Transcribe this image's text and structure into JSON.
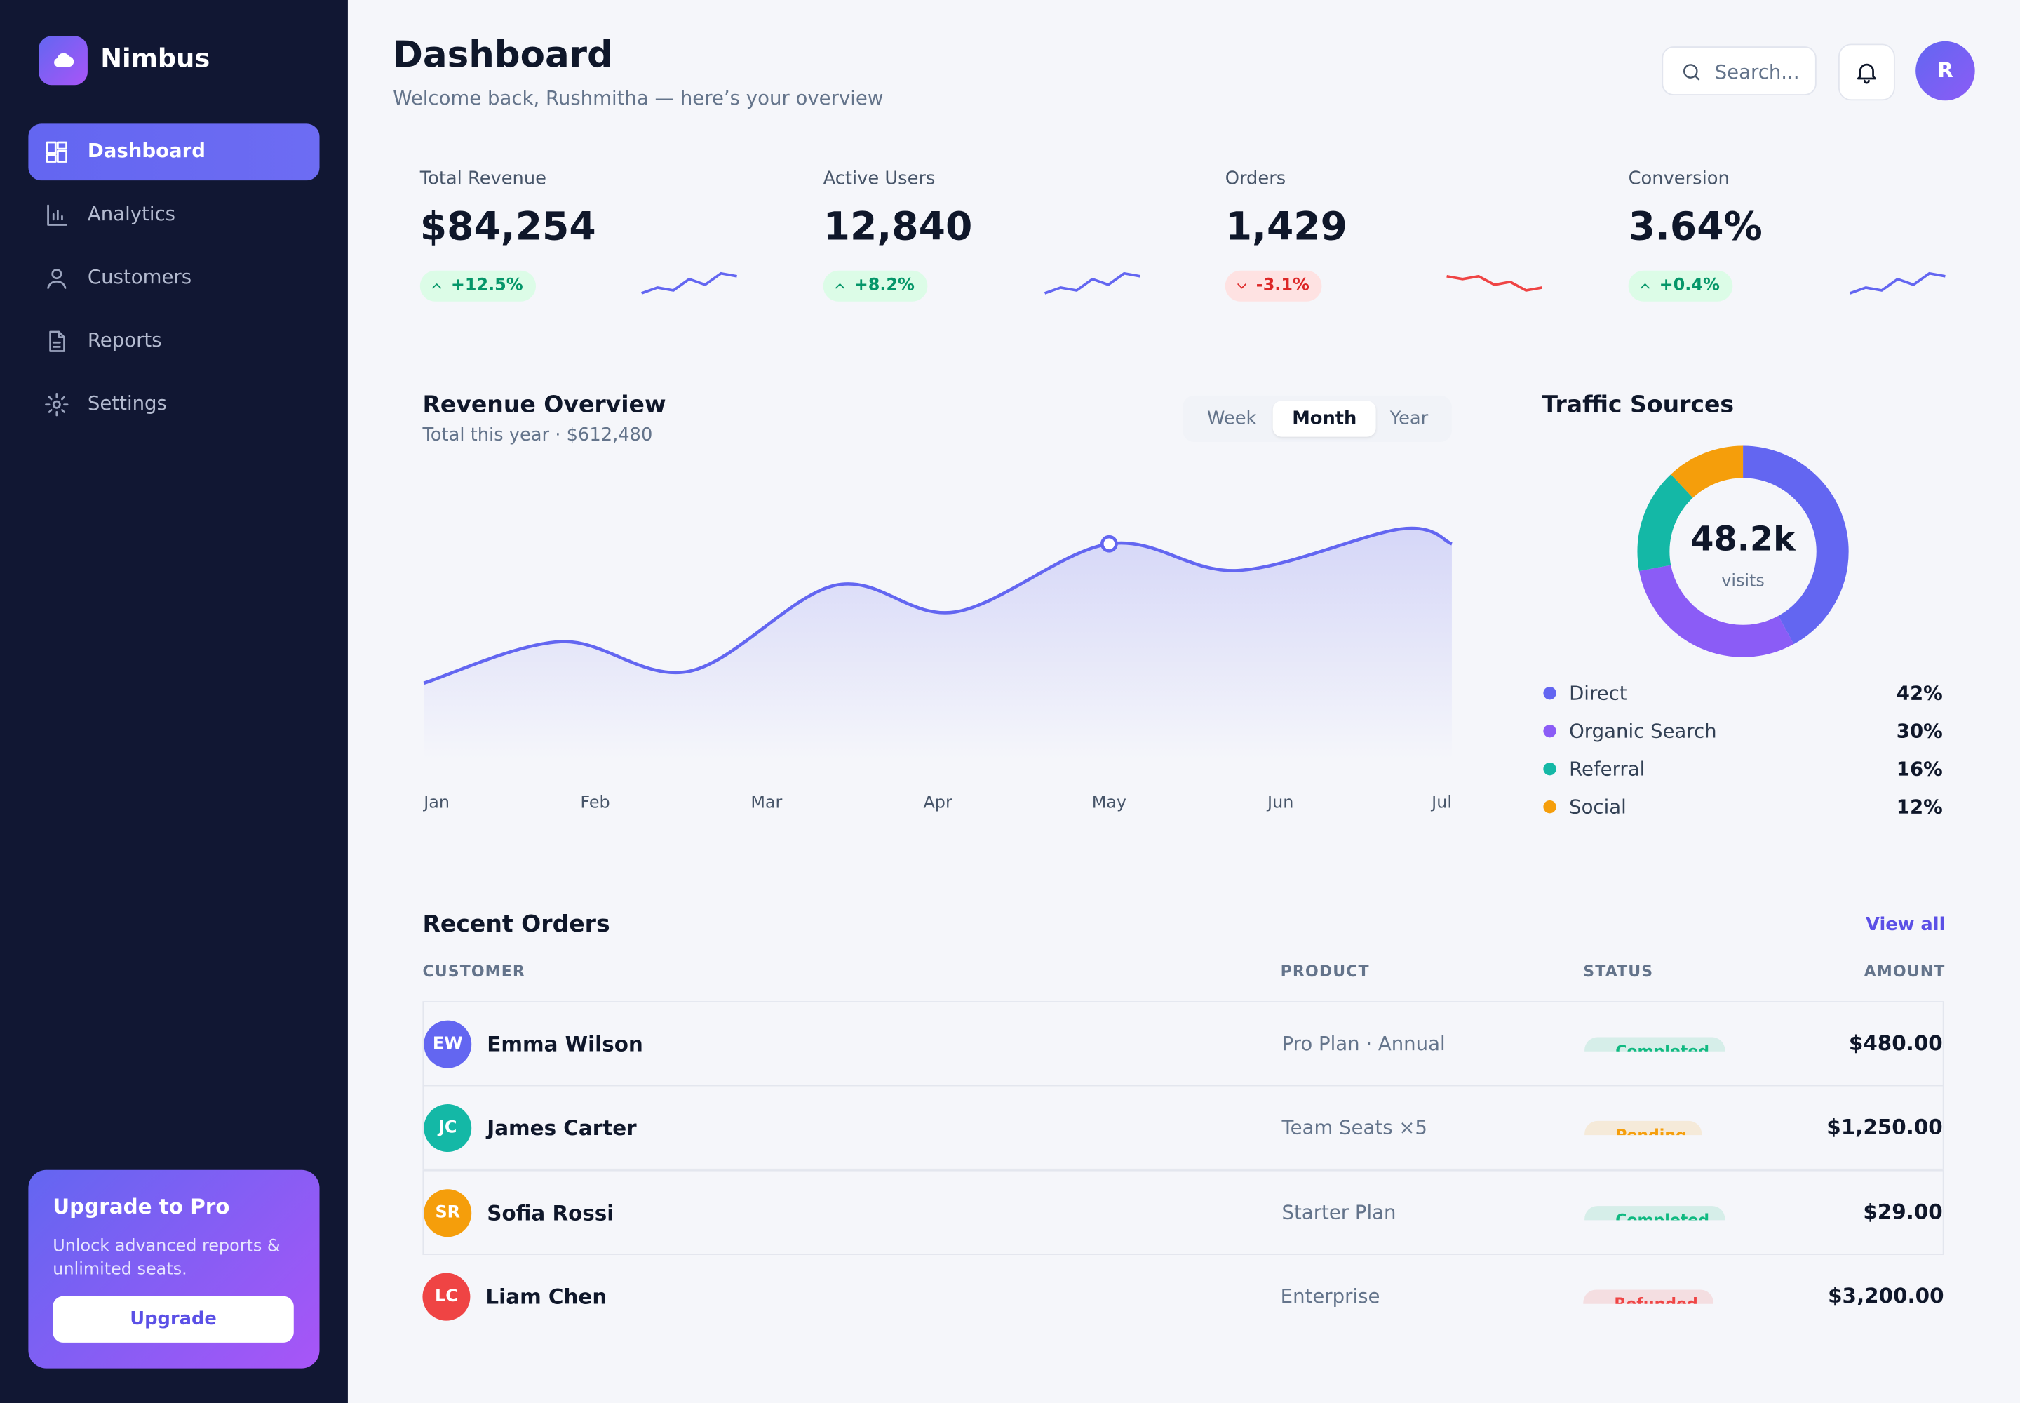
{
  "sidebar": {
    "brand": "Nimbus",
    "nav": [
      "Dashboard",
      "Analytics",
      "Customers",
      "Reports",
      "Settings"
    ],
    "active": 0,
    "upgrade": {
      "title": "Upgrade to Pro",
      "text": "Unlock advanced reports & unlimited seats.",
      "button": "Upgrade"
    }
  },
  "header": {
    "title": "Dashboard",
    "subtitle": "Welcome back, Rushmitha — here’s your overview",
    "search": "Search...",
    "avatar": "R"
  },
  "kpis": [
    {
      "label": "Total Revenue",
      "value": "$84,254",
      "change": "+12.5%",
      "trend": "up",
      "sparkline": [
        2,
        4,
        3,
        7,
        5,
        9,
        8
      ],
      "ylim": [
        0,
        10
      ],
      "color": "#6366f1"
    },
    {
      "label": "Active Users",
      "value": "12,840",
      "change": "+8.2%",
      "trend": "up",
      "sparkline": [
        2,
        4,
        3,
        7,
        5,
        9,
        8
      ],
      "ylim": [
        0,
        10
      ],
      "color": "#6366f1"
    },
    {
      "label": "Orders",
      "value": "1,429",
      "change": "-3.1%",
      "trend": "down",
      "sparkline": [
        8,
        7,
        8,
        5,
        6,
        3,
        4
      ],
      "ylim": [
        0,
        10
      ],
      "color": "#ef4444"
    },
    {
      "label": "Conversion",
      "value": "3.64%",
      "change": "+0.4%",
      "trend": "up",
      "sparkline": [
        2,
        4,
        3,
        7,
        5,
        9,
        8
      ],
      "ylim": [
        0,
        10
      ],
      "color": "#6366f1"
    }
  ],
  "chart_data": [
    {
      "type": "line",
      "title": "Revenue Overview",
      "subtitle": "Total this year · $612,480",
      "ranges": [
        "Week",
        "Month",
        "Year"
      ],
      "active_range": 1,
      "x": [
        0,
        0.8,
        1.55,
        2.4,
        3.1,
        4,
        4.75,
        5.7,
        6
      ],
      "values": [
        26,
        40,
        30,
        59,
        50,
        73,
        64,
        78,
        73
      ],
      "xlim": [
        0,
        6
      ],
      "ylim": [
        0,
        100
      ],
      "xticks": [
        {
          "value": 0,
          "label": "Jan"
        },
        {
          "value": 1,
          "label": "Feb"
        },
        {
          "value": 2,
          "label": "Mar"
        },
        {
          "value": 3,
          "label": "Apr"
        },
        {
          "value": 4,
          "label": "May"
        },
        {
          "value": 5,
          "label": "Jun"
        },
        {
          "value": 6,
          "label": "Jul"
        }
      ],
      "highlight": 5,
      "color": "#6366f1"
    },
    {
      "type": "pie",
      "title": "Traffic Sources",
      "center_value": "48.2k",
      "center_label": "visits",
      "categories": [
        "Direct",
        "Organic Search",
        "Referral",
        "Social"
      ],
      "values": [
        42,
        30,
        16,
        12
      ],
      "value_labels": [
        "42%",
        "30%",
        "16%",
        "12%"
      ],
      "colors": [
        "#6366f1",
        "#8b5cf6",
        "#14b8a6",
        "#f59e0b"
      ]
    }
  ],
  "orders": {
    "title": "Recent Orders",
    "link": "View all",
    "columns": [
      "CUSTOMER",
      "PRODUCT",
      "STATUS",
      "AMOUNT"
    ],
    "rows": [
      {
        "initials": "EW",
        "color": "#6366f1",
        "customer": "Emma Wilson",
        "product": "Pro Plan · Annual",
        "status": "Completed",
        "status_color": "#10b981",
        "amount": "$480.00"
      },
      {
        "initials": "JC",
        "color": "#14b8a6",
        "customer": "James Carter",
        "product": "Team Seats ×5",
        "status": "Pending",
        "status_color": "#f59e0b",
        "amount": "$1,250.00"
      },
      {
        "initials": "SR",
        "color": "#f59e0b",
        "customer": "Sofia Rossi",
        "product": "Starter Plan",
        "status": "Completed",
        "status_color": "#10b981",
        "amount": "$29.00"
      },
      {
        "initials": "LC",
        "color": "#ef4444",
        "customer": "Liam Chen",
        "product": "Enterprise",
        "status": "Refunded",
        "status_color": "#ef4444",
        "amount": "$3,200.00"
      }
    ]
  }
}
